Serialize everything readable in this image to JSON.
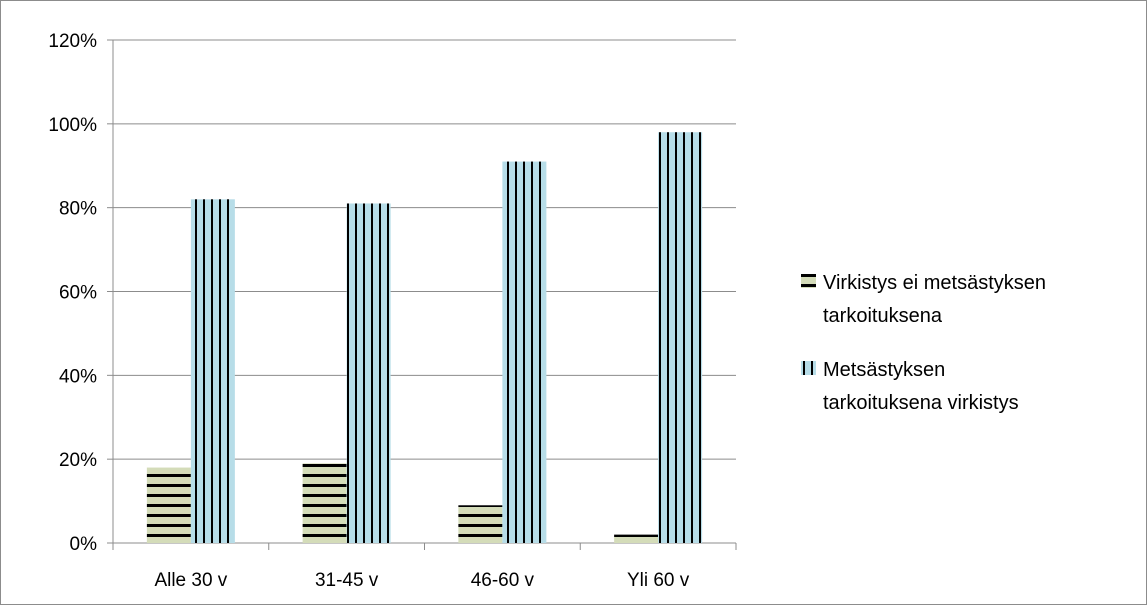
{
  "chart_data": {
    "type": "bar",
    "categories": [
      "Alle 30 v",
      "31-45 v",
      "46-60 v",
      "Yli 60 v"
    ],
    "series": [
      {
        "name": "Virkistys ei metsästyksen tarkoituksena",
        "legend_lines": [
          "Virkistys ei metsästyksen",
          "tarkoituksena"
        ],
        "values": [
          0.18,
          0.19,
          0.09,
          0.02
        ],
        "color": "#d4dcb9",
        "stripe": "#000000",
        "pattern": "horizontal"
      },
      {
        "name": "Metsästyksen tarkoituksena virkistys",
        "legend_lines": [
          "Metsästyksen",
          "tarkoituksena virkistys"
        ],
        "values": [
          0.82,
          0.81,
          0.91,
          0.98
        ],
        "color": "#b7dde8",
        "stripe": "#000000",
        "pattern": "vertical"
      }
    ],
    "yticks": [
      "0%",
      "20%",
      "40%",
      "60%",
      "80%",
      "100%",
      "120%"
    ],
    "ylim": [
      0,
      1.2
    ],
    "grid": true,
    "legend_position": "right",
    "title": "",
    "xlabel": "",
    "ylabel": ""
  }
}
